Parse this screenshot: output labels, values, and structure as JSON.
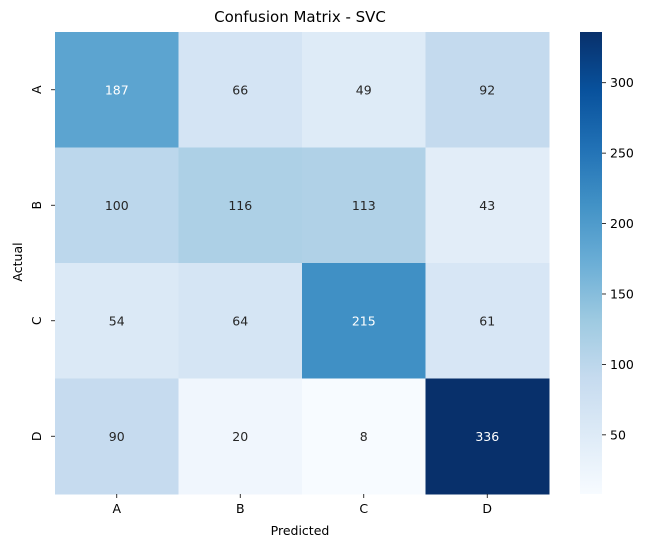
{
  "chart_data": {
    "type": "heatmap",
    "title": "Confusion Matrix - SVC",
    "xlabel": "Predicted",
    "ylabel": "Actual",
    "x_categories": [
      "A",
      "B",
      "C",
      "D"
    ],
    "y_categories": [
      "A",
      "B",
      "C",
      "D"
    ],
    "values": [
      [
        187,
        66,
        49,
        92
      ],
      [
        100,
        116,
        113,
        43
      ],
      [
        54,
        64,
        215,
        61
      ],
      [
        90,
        20,
        8,
        336
      ]
    ],
    "colormap": "Blues",
    "vmin": 8,
    "vmax": 336,
    "colorbar_ticks": [
      50,
      100,
      150,
      200,
      250,
      300
    ]
  }
}
